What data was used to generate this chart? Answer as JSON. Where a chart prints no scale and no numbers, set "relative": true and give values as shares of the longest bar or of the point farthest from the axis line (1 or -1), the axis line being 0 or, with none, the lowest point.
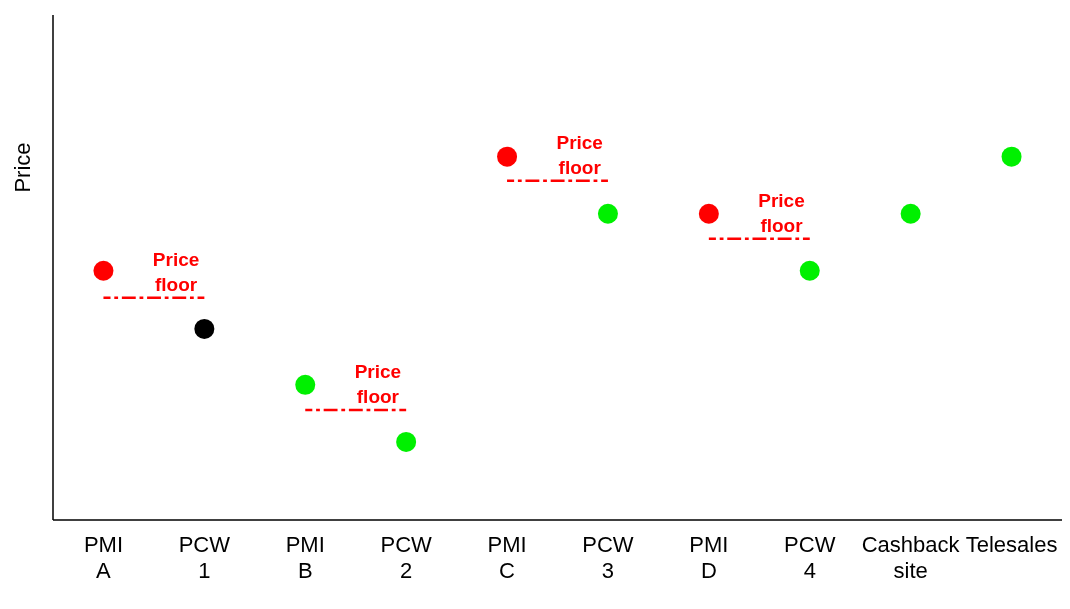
{
  "chart_data": {
    "type": "scatter",
    "relative": true,
    "ylabel": "Price",
    "categories": [
      "PMI A",
      "PCW 1",
      "PMI B",
      "PCW 2",
      "PMI C",
      "PCW 3",
      "PMI D",
      "PCW 4",
      "Cashback site",
      "Telesales"
    ],
    "marker": "circle",
    "line_style": "dashed",
    "grid": false,
    "legend": false,
    "series": [
      {
        "values": [
          0.686,
          0.526,
          0.372,
          0.215,
          1,
          0.843,
          0.843,
          0.686,
          0.843,
          1
        ],
        "colors": [
          "#ff0000",
          "#000000",
          "#00f000",
          "#00f000",
          "#ff0000",
          "#00f000",
          "#ff0000",
          "#00f000",
          "#00f000",
          "#00f000"
        ]
      },
      {
        "type": "line",
        "marker": "none",
        "color": "#ff0000",
        "values": [
          0.612,
          0.612,
          null,
          null,
          null,
          null,
          null,
          null,
          null,
          null
        ]
      },
      {
        "type": "line",
        "marker": "none",
        "color": "#ff0000",
        "values": [
          null,
          null,
          0.303,
          0.303,
          null,
          null,
          null,
          null,
          null,
          null
        ]
      },
      {
        "type": "line",
        "marker": "none",
        "color": "#ff0000",
        "values": [
          null,
          null,
          null,
          null,
          0.934,
          0.934,
          null,
          null,
          null,
          null
        ]
      },
      {
        "type": "line",
        "marker": "none",
        "color": "#ff0000",
        "values": [
          null,
          null,
          null,
          null,
          null,
          null,
          0.774,
          0.774,
          null,
          null
        ]
      }
    ],
    "annotations": [
      {
        "text": "Price floor",
        "x": "PCW 1",
        "y": 0.612
      },
      {
        "text": "Price floor",
        "x": "PCW 2",
        "y": 0.303
      },
      {
        "text": "Price floor",
        "x": "PCW 3",
        "y": 0.934
      },
      {
        "text": "Price floor",
        "x": "PCW 4",
        "y": 0.774
      }
    ]
  }
}
